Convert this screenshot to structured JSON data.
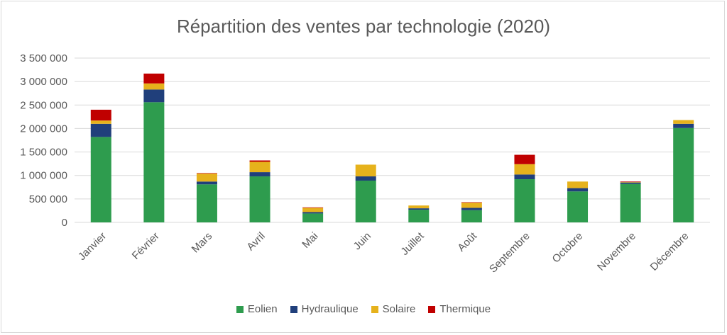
{
  "chart_data": {
    "type": "bar",
    "stacked": true,
    "title": "Répartition des ventes par technologie (2020)",
    "xlabel": "",
    "ylabel": "",
    "ylim": [
      0,
      3500000
    ],
    "yticks": [
      0,
      500000,
      1000000,
      1500000,
      2000000,
      2500000,
      3000000,
      3500000
    ],
    "ytick_labels": [
      "0",
      "500 000",
      "1 000 000",
      "1 500 000",
      "2 000 000",
      "2 500 000",
      "3 000 000",
      "3 500 000"
    ],
    "grid": true,
    "legend_position": "bottom",
    "categories": [
      "Janvier",
      "Février",
      "Mars",
      "Avril",
      "Mai",
      "Juin",
      "Juillet",
      "Août",
      "Septembre",
      "Octobre",
      "Novembre",
      "Décembre"
    ],
    "series": [
      {
        "name": "Eolien",
        "color": "#2e9c4e",
        "values": [
          1820000,
          2560000,
          810000,
          980000,
          190000,
          890000,
          270000,
          260000,
          920000,
          660000,
          820000,
          2010000
        ]
      },
      {
        "name": "Hydraulique",
        "color": "#203f7b",
        "values": [
          280000,
          270000,
          60000,
          90000,
          30000,
          90000,
          30000,
          50000,
          100000,
          70000,
          30000,
          90000
        ]
      },
      {
        "name": "Solaire",
        "color": "#e6b21c",
        "values": [
          70000,
          130000,
          170000,
          220000,
          90000,
          250000,
          60000,
          110000,
          220000,
          140000,
          10000,
          80000
        ]
      },
      {
        "name": "Thermique",
        "color": "#c00000",
        "values": [
          230000,
          210000,
          10000,
          30000,
          10000,
          0,
          0,
          10000,
          200000,
          0,
          10000,
          0
        ]
      }
    ]
  }
}
